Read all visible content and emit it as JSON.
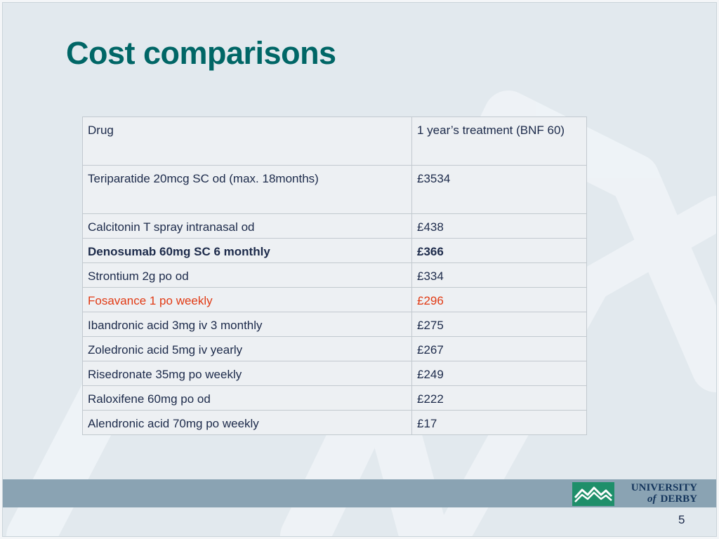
{
  "slide": {
    "title": "Cost comparisons",
    "page_number": "5"
  },
  "table": {
    "headers": [
      "Drug",
      "1 year’s treatment (BNF 60)"
    ],
    "rows": [
      {
        "drug": "Teriparatide 20mcg SC od (max. 18months)",
        "cost": "£3534"
      },
      {
        "drug": "Calcitonin T spray intranasal od",
        "cost": "£438"
      },
      {
        "drug": "Denosumab 60mg SC 6 monthly",
        "cost": "£366"
      },
      {
        "drug": "Strontium 2g po od",
        "cost": "£334"
      },
      {
        "drug": "Fosavance 1 po weekly",
        "cost": "£296"
      },
      {
        "drug": "Ibandronic acid 3mg iv 3 monthly",
        "cost": "£275"
      },
      {
        "drug": "Zoledronic acid 5mg iv yearly",
        "cost": "£267"
      },
      {
        "drug": "Risedronate 35mg po weekly",
        "cost": "£249"
      },
      {
        "drug": "Raloxifene 60mg po od",
        "cost": "£222"
      },
      {
        "drug": "Alendronic acid 70mg po weekly",
        "cost": "£17"
      }
    ]
  },
  "logo": {
    "line1": "UNIVERSITY",
    "of": "of",
    "line2": "DERBY",
    "icon": "university-of-derby-mountains-logo"
  },
  "colors": {
    "title": "#006666",
    "highlight_red": "#e13a14",
    "footer_band": "#8aa3b3",
    "logo_green": "#1f8f6a",
    "logo_navy": "#14355c"
  }
}
